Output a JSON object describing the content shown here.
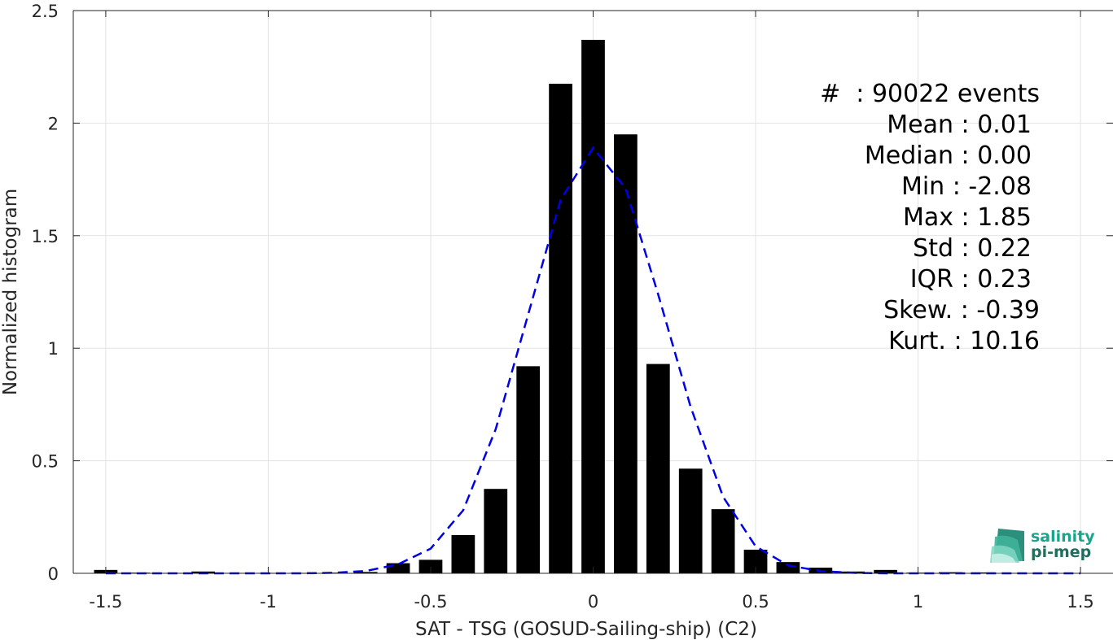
{
  "chart_data": {
    "type": "bar",
    "xlabel": "SAT - TSG (GOSUD-Sailing-ship) (C2)",
    "ylabel": "Normalized histogram",
    "xlim": [
      -1.6,
      1.6
    ],
    "ylim": [
      0,
      2.5
    ],
    "grid": true,
    "x_ticks": [
      -1.5,
      -1,
      -0.5,
      0,
      0.5,
      1,
      1.5
    ],
    "x_tick_labels": [
      "-1.5",
      "-1",
      "-0.5",
      "0",
      "0.5",
      "1",
      "1.5"
    ],
    "y_ticks": [
      0,
      0.5,
      1,
      1.5,
      2,
      2.5
    ],
    "y_tick_labels": [
      "0",
      "0.5",
      "1",
      "1.5",
      "2",
      "2.5"
    ],
    "bar_color": "#000000",
    "bars": {
      "x": [
        -1.5,
        -1.4,
        -1.3,
        -1.2,
        -1.1,
        -1.0,
        -0.9,
        -0.8,
        -0.7,
        -0.6,
        -0.5,
        -0.4,
        -0.3,
        -0.2,
        -0.1,
        0.0,
        0.1,
        0.2,
        0.3,
        0.4,
        0.5,
        0.6,
        0.7,
        0.8,
        0.9,
        1.0,
        1.1,
        1.2,
        1.3,
        1.4,
        1.5
      ],
      "values": [
        0.015,
        0.003,
        0.002,
        0.008,
        0.002,
        0.002,
        0.002,
        0.003,
        0.006,
        0.045,
        0.06,
        0.17,
        0.375,
        0.92,
        2.175,
        2.37,
        1.95,
        0.93,
        0.465,
        0.285,
        0.105,
        0.05,
        0.025,
        0.008,
        0.015,
        0.003,
        0.005,
        0.004,
        0.002,
        0.001,
        0.001
      ]
    },
    "fit_curve": {
      "style": "dashed",
      "color": "#0000e6",
      "x": [
        -1.5,
        -1.4,
        -1.3,
        -1.2,
        -1.1,
        -1.0,
        -0.9,
        -0.8,
        -0.7,
        -0.6,
        -0.5,
        -0.4,
        -0.3,
        -0.2,
        -0.1,
        0.0,
        0.1,
        0.2,
        0.3,
        0.4,
        0.5,
        0.6,
        0.7,
        0.8,
        0.9,
        1.0,
        1.1,
        1.2,
        1.3,
        1.4,
        1.5
      ],
      "values": [
        0,
        0,
        0,
        0,
        0,
        0,
        0,
        0.002,
        0.01,
        0.04,
        0.11,
        0.28,
        0.64,
        1.15,
        1.66,
        1.89,
        1.71,
        1.24,
        0.74,
        0.34,
        0.12,
        0.035,
        0.01,
        0.002,
        0,
        0,
        0,
        0,
        0,
        0,
        0
      ]
    }
  },
  "stats": [
    "#  : 90022 events",
    "Mean : 0.01",
    "Median : 0.00",
    "Min : -2.08",
    "Max : 1.85",
    "Std : 0.22",
    "IQR : 0.23",
    "Skew. : -0.39",
    "Kurt. : 10.16"
  ],
  "logo": {
    "line1": "salinity",
    "line2": "pi-mep",
    "color": "#1aa58a"
  }
}
